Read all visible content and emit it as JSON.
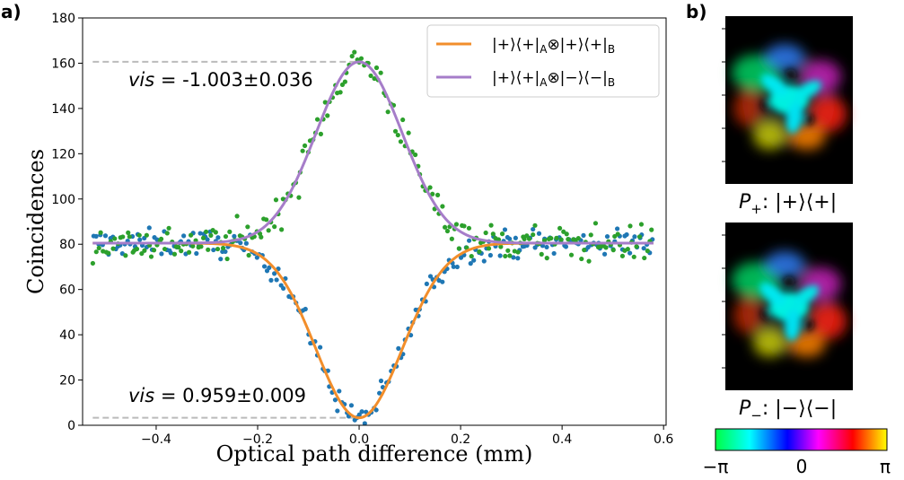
{
  "panel_labels": {
    "a": "a)",
    "b": "b)"
  },
  "chart_data": {
    "type": "scatter",
    "xlabel": "Optical path difference (mm)",
    "ylabel": "Coincidences",
    "xlim": [
      -0.545,
      0.605
    ],
    "ylim": [
      0,
      180
    ],
    "xticks": [
      -0.4,
      -0.2,
      0.0,
      0.2,
      0.4,
      0.6
    ],
    "xtick_labels": [
      "−0.4",
      "−0.2",
      "0.0",
      "0.2",
      "0.4",
      "0.6"
    ],
    "yticks": [
      0,
      20,
      40,
      60,
      80,
      100,
      120,
      140,
      160,
      180
    ],
    "ytick_labels": [
      "0",
      "20",
      "40",
      "60",
      "80",
      "100",
      "120",
      "140",
      "160",
      "180"
    ],
    "grid": false,
    "legend_position": "top-right",
    "fit_model": {
      "baseline": 80.5,
      "center": 0.0,
      "sigma": 0.085
    },
    "series": [
      {
        "name": "|+⟩⟨+|A⊗|+⟩⟨+|B",
        "kind": "fit-line",
        "color": "#f28e2b",
        "x_range": [
          -0.525,
          0.58
        ],
        "minimum": 3.3
      },
      {
        "name": "|+⟩⟨+|A⊗|−⟩⟨−|B",
        "kind": "fit-line",
        "color": "#a67dc9",
        "x_range": [
          -0.525,
          0.58
        ],
        "maximum": 160.6
      },
      {
        "kind": "scatter",
        "color": "#1f77b4",
        "x_range": [
          -0.525,
          0.58
        ],
        "n_points": 230,
        "noise": 3,
        "follows": "dip"
      },
      {
        "kind": "scatter",
        "color": "#2ca02c",
        "x_range": [
          -0.525,
          0.58
        ],
        "n_points": 230,
        "noise": 4,
        "follows": "peak"
      }
    ],
    "annotations": [
      {
        "text": "vis = -1.003±0.036",
        "y": 160.6
      },
      {
        "text": "vis = 0.959±0.009",
        "y": 3.3
      }
    ]
  },
  "legend": {
    "entry1": {
      "pre": "|+⟩⟨+|",
      "sub1": "A",
      "mid": "⊗|+⟩⟨+|",
      "sub2": "B"
    },
    "entry2": {
      "pre": "|+⟩⟨+|",
      "sub1": "A",
      "mid": "⊗|−⟩⟨−|",
      "sub2": "B"
    }
  },
  "annotation_top": {
    "italic": "vis",
    "rest": " = -1.003±0.036"
  },
  "annotation_bottom": {
    "italic": "vis",
    "rest": " = 0.959±0.009"
  },
  "panel_b": {
    "top_label": {
      "P": "P",
      "sub": "+",
      "rest": ":  |+⟩⟨+|"
    },
    "bottom_label": {
      "P": "P",
      "sub": "−",
      "rest": ":  |−⟩⟨−|"
    },
    "colorbar": {
      "min_label": "−π",
      "mid_label": "0",
      "max_label": "π",
      "colors": [
        "#00ff44",
        "#00ffff",
        "#0000ff",
        "#ff00ff",
        "#ff0000",
        "#ffff00"
      ]
    }
  }
}
